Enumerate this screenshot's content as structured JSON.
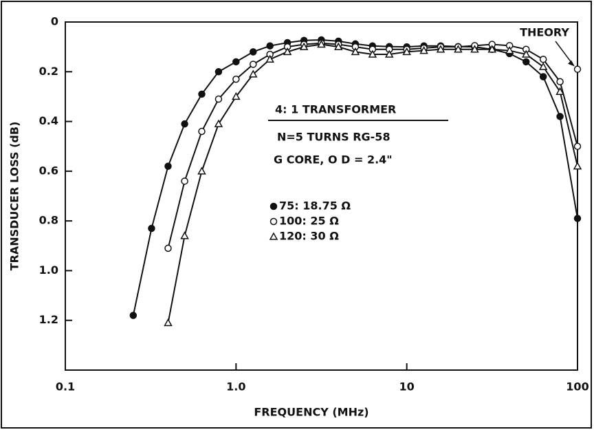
{
  "chart_data": {
    "type": "line",
    "xlabel": "FREQUENCY (MHz)",
    "ylabel": "TRANSDUCER LOSS (dB)",
    "xscale": "log",
    "xlim": [
      0.1,
      100
    ],
    "xticks": [
      0.1,
      {
        "value": 1,
        "label": "1.0"
      },
      10,
      100
    ],
    "ylim": [
      1.4,
      0
    ],
    "yticks": [
      0,
      0.2,
      0.4,
      0.6,
      0.8,
      {
        "value": 1,
        "label": "1.0"
      },
      1.2
    ],
    "grid": false,
    "color": "#111111",
    "annotations": [
      "4: 1 TRANSFORMER",
      "N=5 TURNS RG-58",
      "G CORE, O D = 2.4\""
    ],
    "theory": {
      "label": "THEORY",
      "x": 100,
      "y": 0.19
    },
    "series": [
      {
        "name": "75: 18.75 Ω",
        "marker": "filled-circle",
        "x": [
          0.25,
          0.32,
          0.4,
          0.5,
          0.63,
          0.79,
          1.0,
          1.26,
          1.58,
          2.0,
          2.5,
          3.16,
          3.98,
          5.0,
          6.3,
          7.9,
          10,
          12.6,
          15.8,
          20,
          25,
          31.6,
          40,
          50,
          63,
          79,
          100
        ],
        "values": [
          1.18,
          0.83,
          0.58,
          0.41,
          0.29,
          0.2,
          0.16,
          0.12,
          0.096,
          0.083,
          0.074,
          0.072,
          0.077,
          0.088,
          0.096,
          0.099,
          0.1,
          0.096,
          0.096,
          0.099,
          0.1,
          0.11,
          0.127,
          0.16,
          0.22,
          0.38,
          0.79
        ]
      },
      {
        "name": "100: 25 Ω",
        "marker": "open-circle",
        "x": [
          0.4,
          0.5,
          0.63,
          0.79,
          1.0,
          1.26,
          1.58,
          2.0,
          2.5,
          3.16,
          3.98,
          5.0,
          6.3,
          7.9,
          10,
          12.6,
          15.8,
          20,
          25,
          31.6,
          40,
          50,
          63,
          79,
          100
        ],
        "values": [
          0.91,
          0.64,
          0.44,
          0.31,
          0.23,
          0.17,
          0.13,
          0.1,
          0.09,
          0.085,
          0.09,
          0.1,
          0.11,
          0.11,
          0.11,
          0.105,
          0.1,
          0.1,
          0.095,
          0.09,
          0.095,
          0.11,
          0.15,
          0.24,
          0.5
        ]
      },
      {
        "name": "120: 30 Ω",
        "marker": "triangle",
        "x": [
          0.4,
          0.5,
          0.63,
          0.79,
          1.0,
          1.26,
          1.58,
          2.0,
          2.5,
          3.16,
          3.98,
          5.0,
          6.3,
          7.9,
          10,
          12.6,
          15.8,
          20,
          25,
          31.6,
          40,
          50,
          63,
          79,
          100
        ],
        "values": [
          1.21,
          0.86,
          0.6,
          0.41,
          0.3,
          0.21,
          0.15,
          0.12,
          0.1,
          0.09,
          0.1,
          0.12,
          0.13,
          0.13,
          0.12,
          0.115,
          0.11,
          0.11,
          0.11,
          0.11,
          0.115,
          0.13,
          0.18,
          0.28,
          0.58
        ]
      }
    ]
  }
}
